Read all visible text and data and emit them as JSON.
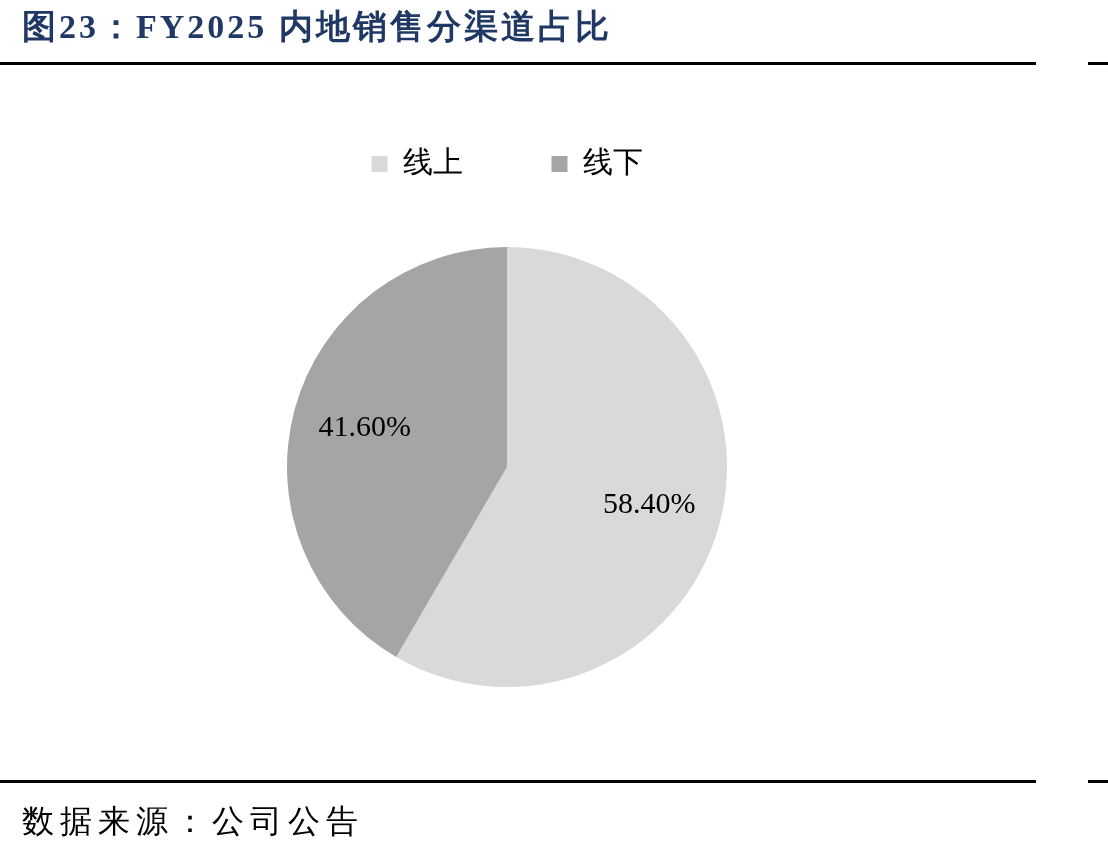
{
  "chart_data": {
    "type": "pie",
    "title": "图23：FY2025 内地销售分渠道占比",
    "categories": [
      "线上",
      "线下"
    ],
    "values": [
      58.4,
      41.6
    ],
    "colors": [
      "#d9d9d9",
      "#a5a5a5"
    ],
    "value_labels": [
      "58.40%",
      "41.60%"
    ],
    "legend": "top",
    "annotations": [
      "数据来源：公司公告"
    ]
  }
}
